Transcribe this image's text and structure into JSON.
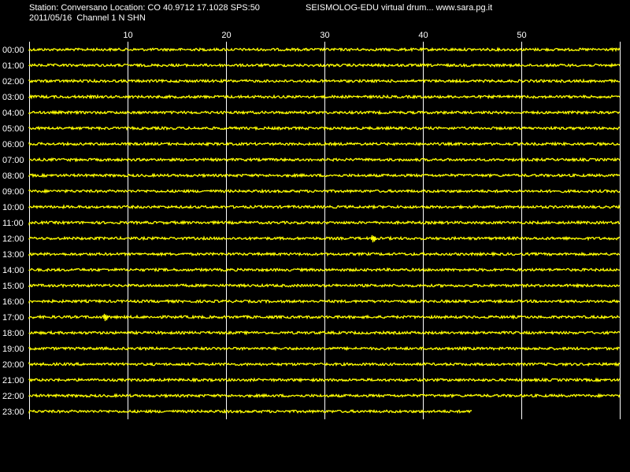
{
  "header": {
    "station_line": "Station: Conversano Location: CO 40.9712 17.1028 SPS:50",
    "product_line": "SEISMOLOG-EDU virtual drum... www.sara.pg.it",
    "date_line": "2011/05/16  Channel 1 N SHN"
  },
  "colors": {
    "background": "#000000",
    "trace": "#ffff00",
    "grid": "#ffffff",
    "text": "#ffffff"
  },
  "chart_data": {
    "type": "line",
    "title": "",
    "xlabel": "",
    "ylabel": "",
    "xlim": [
      0,
      60
    ],
    "x_ticks": [
      "10",
      "20",
      "30",
      "40",
      "50"
    ],
    "x_tick_values": [
      10,
      20,
      30,
      40,
      50
    ],
    "grid": true,
    "rows": [
      {
        "label": "00:00",
        "end_minute": 60
      },
      {
        "label": "01:00",
        "end_minute": 60
      },
      {
        "label": "02:00",
        "end_minute": 60
      },
      {
        "label": "03:00",
        "end_minute": 60
      },
      {
        "label": "04:00",
        "end_minute": 60
      },
      {
        "label": "05:00",
        "end_minute": 60
      },
      {
        "label": "06:00",
        "end_minute": 60
      },
      {
        "label": "07:00",
        "end_minute": 60
      },
      {
        "label": "08:00",
        "end_minute": 60
      },
      {
        "label": "09:00",
        "end_minute": 60
      },
      {
        "label": "10:00",
        "end_minute": 60
      },
      {
        "label": "11:00",
        "end_minute": 60
      },
      {
        "label": "12:00",
        "end_minute": 60,
        "event_minute": 35.0
      },
      {
        "label": "13:00",
        "end_minute": 60
      },
      {
        "label": "14:00",
        "end_minute": 60
      },
      {
        "label": "15:00",
        "end_minute": 60
      },
      {
        "label": "16:00",
        "end_minute": 60
      },
      {
        "label": "17:00",
        "end_minute": 60,
        "event_minute": 7.8
      },
      {
        "label": "18:00",
        "end_minute": 60
      },
      {
        "label": "19:00",
        "end_minute": 60
      },
      {
        "label": "20:00",
        "end_minute": 60
      },
      {
        "label": "21:00",
        "end_minute": 60
      },
      {
        "label": "22:00",
        "end_minute": 60
      },
      {
        "label": "23:00",
        "end_minute": 45
      }
    ]
  }
}
